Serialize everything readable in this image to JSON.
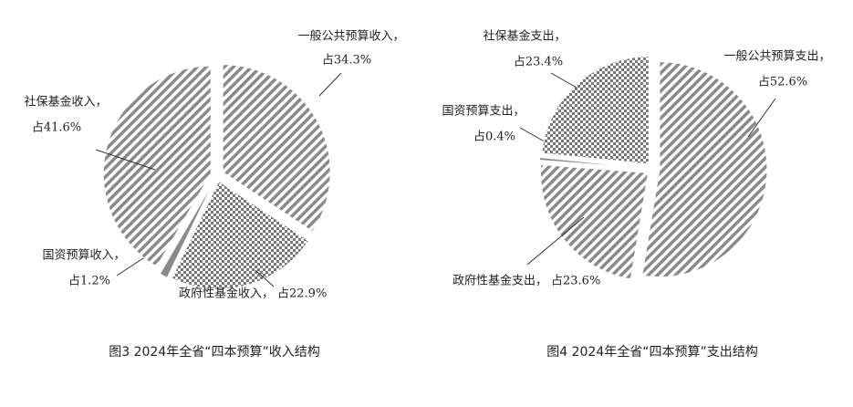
{
  "chart_data": [
    {
      "type": "pie",
      "title": "图3  2024年全省“四本预算”收入结构",
      "categories": [
        "一般公共预算收入，",
        "政府性基金收入，",
        "国资预算收入，",
        "社保基金收入，"
      ],
      "values": [
        34.3,
        22.9,
        1.2,
        41.6
      ],
      "value_labels": [
        "占34.3%",
        "占22.9%",
        "占1.2%",
        "占41.6%"
      ],
      "patterns": [
        "stripes",
        "checker",
        "solid",
        "stripes"
      ],
      "color": "#8a8a8a"
    },
    {
      "type": "pie",
      "title": "图4  2024年全省“四本预算”支出结构",
      "categories": [
        "一般公共预算支出，",
        "政府性基金支出，",
        "国资预算支出，",
        "社保基金支出，"
      ],
      "values": [
        52.6,
        23.6,
        0.4,
        23.4
      ],
      "value_labels": [
        "占52.6%",
        "占23.6%",
        "占0.4%",
        "占23.4%"
      ],
      "patterns": [
        "stripes",
        "stripes",
        "solid",
        "checker"
      ],
      "color": "#8a8a8a"
    }
  ]
}
